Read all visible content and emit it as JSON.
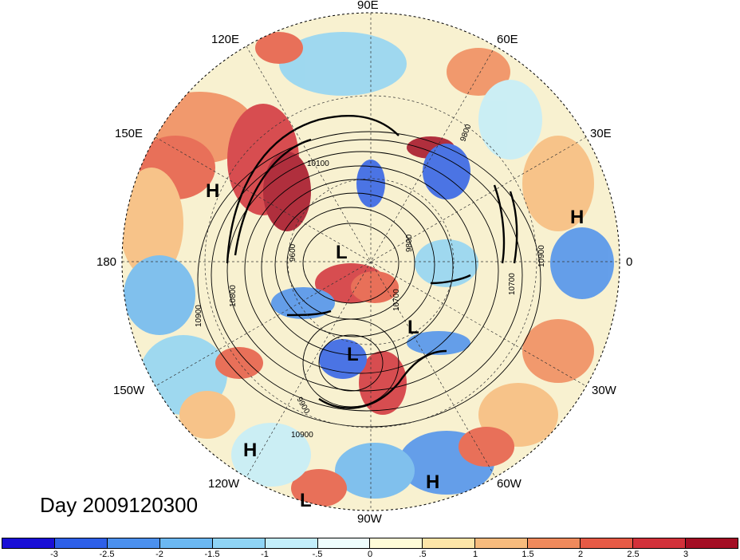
{
  "title_label": "Day 2009120300",
  "longitude_labels": [
    "90E",
    "60E",
    "120E",
    "30E",
    "150E",
    "180",
    "0",
    "150W",
    "30W",
    "120W",
    "60W",
    "90W"
  ],
  "pressure_centers": [
    "H",
    "H",
    "H",
    "H",
    "L",
    "L",
    "L",
    "L"
  ],
  "contour_labels": [
    "10100",
    "9600",
    "9800",
    "9800",
    "10700",
    "10900",
    "10900",
    "10800",
    "9900",
    "10700",
    "10900"
  ],
  "colorbar": {
    "colors": [
      "#1a0fd6",
      "#2d5fe8",
      "#4b90ee",
      "#6bb8f2",
      "#8fd4f5",
      "#c3eefb",
      "#eefdfd",
      "#fffcd8",
      "#fde5a8",
      "#f7bb7d",
      "#f08a5c",
      "#e65a45",
      "#d2313a",
      "#a40e24"
    ],
    "tick_labels": [
      "-3",
      "-2.5",
      "-2",
      "-1.5",
      "-1",
      "-.5",
      "0",
      ".5",
      "1",
      "1.5",
      "2",
      "2.5",
      "3"
    ]
  },
  "map_colors": {
    "ocean_base": "#f7f2cf",
    "land_outline": "#111111",
    "grid": "#333333"
  }
}
